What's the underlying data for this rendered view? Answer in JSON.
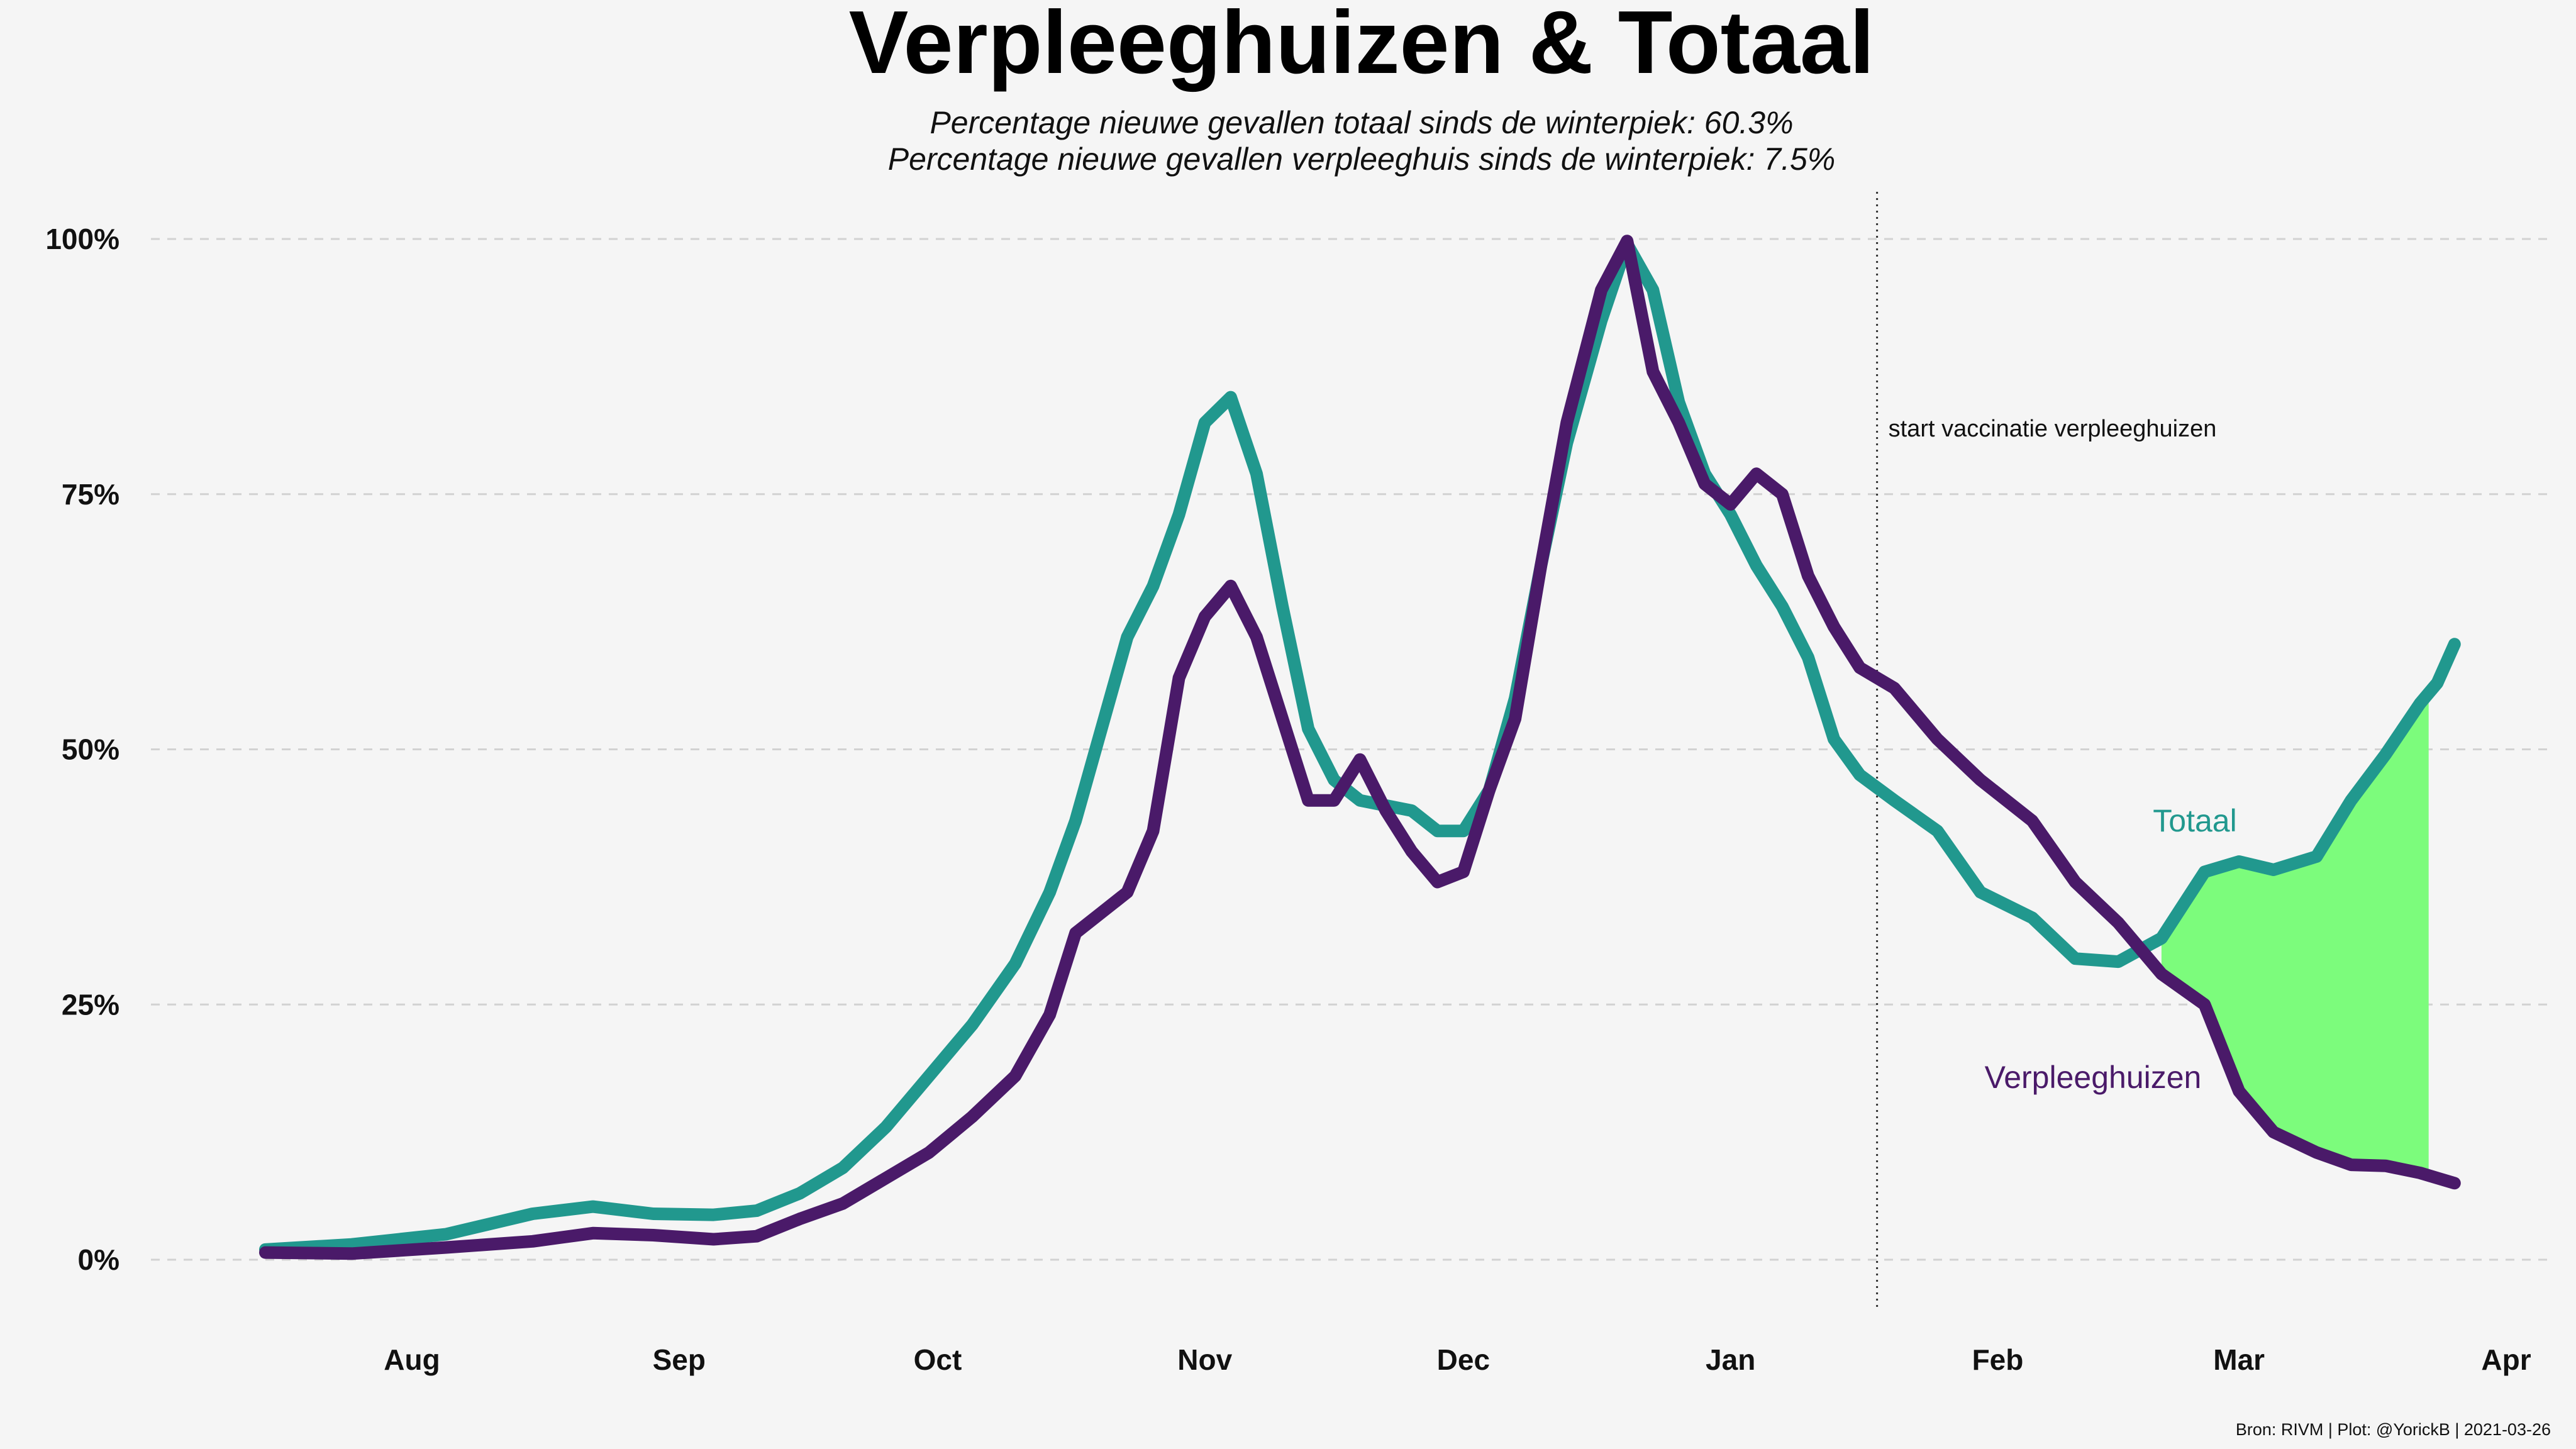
{
  "chart_data": {
    "type": "line",
    "title": "Verpleeghuizen & Totaal",
    "subtitles": [
      "Percentage nieuwe gevallen totaal sinds de winterpiek: 60.3%",
      "Percentage nieuwe gevallen verpleeghuis sinds de winterpiek: 7.5%"
    ],
    "xlabel": "",
    "ylabel": "",
    "x_domain": [
      "2020-07-01",
      "2021-04-01"
    ],
    "xticks": [
      {
        "date": "2020-08-01",
        "label": "Aug"
      },
      {
        "date": "2020-09-01",
        "label": "Sep"
      },
      {
        "date": "2020-10-01",
        "label": "Oct"
      },
      {
        "date": "2020-11-01",
        "label": "Nov"
      },
      {
        "date": "2020-12-01",
        "label": "Dec"
      },
      {
        "date": "2021-01-01",
        "label": "Jan"
      },
      {
        "date": "2021-02-01",
        "label": "Feb"
      },
      {
        "date": "2021-03-01",
        "label": "Mar"
      },
      {
        "date": "2021-04-01",
        "label": "Apr"
      }
    ],
    "ylim": [
      -5,
      101
    ],
    "yticks": [
      {
        "value": 0,
        "label": "0%"
      },
      {
        "value": 25,
        "label": "25%"
      },
      {
        "value": 50,
        "label": "50%"
      },
      {
        "value": 75,
        "label": "75%"
      },
      {
        "value": 100,
        "label": "100%"
      }
    ],
    "grid": "horizontal dashed",
    "annotation": {
      "date": "2021-01-18",
      "text": "start vaccinatie verpleeghuizen"
    },
    "series": [
      {
        "name": "Totaal",
        "color": "#21988e",
        "points": [
          [
            "2020-07-15",
            1
          ],
          [
            "2020-07-25",
            1.5
          ],
          [
            "2020-08-05",
            2.5
          ],
          [
            "2020-08-15",
            4.5
          ],
          [
            "2020-08-22",
            5.2
          ],
          [
            "2020-08-29",
            4.5
          ],
          [
            "2020-09-05",
            4.4
          ],
          [
            "2020-09-10",
            4.8
          ],
          [
            "2020-09-15",
            6.5
          ],
          [
            "2020-09-20",
            9
          ],
          [
            "2020-09-25",
            13
          ],
          [
            "2020-09-30",
            18
          ],
          [
            "2020-10-05",
            23
          ],
          [
            "2020-10-10",
            29
          ],
          [
            "2020-10-14",
            36
          ],
          [
            "2020-10-17",
            43
          ],
          [
            "2020-10-20",
            52
          ],
          [
            "2020-10-23",
            61
          ],
          [
            "2020-10-26",
            66
          ],
          [
            "2020-10-29",
            73
          ],
          [
            "2020-11-01",
            82
          ],
          [
            "2020-11-04",
            84.5
          ],
          [
            "2020-11-07",
            77
          ],
          [
            "2020-11-10",
            64
          ],
          [
            "2020-11-13",
            52
          ],
          [
            "2020-11-16",
            47
          ],
          [
            "2020-11-19",
            45
          ],
          [
            "2020-11-22",
            44.5
          ],
          [
            "2020-11-25",
            44
          ],
          [
            "2020-11-28",
            42
          ],
          [
            "2020-12-01",
            42
          ],
          [
            "2020-12-04",
            46
          ],
          [
            "2020-12-07",
            55
          ],
          [
            "2020-12-10",
            68
          ],
          [
            "2020-12-13",
            80
          ],
          [
            "2020-12-17",
            92
          ],
          [
            "2020-12-20",
            99.5
          ],
          [
            "2020-12-23",
            95
          ],
          [
            "2020-12-26",
            84
          ],
          [
            "2020-12-29",
            77
          ],
          [
            "2021-01-01",
            73
          ],
          [
            "2021-01-04",
            68
          ],
          [
            "2021-01-07",
            64
          ],
          [
            "2021-01-10",
            59
          ],
          [
            "2021-01-13",
            51
          ],
          [
            "2021-01-16",
            47.5
          ],
          [
            "2021-01-20",
            45
          ],
          [
            "2021-01-25",
            42
          ],
          [
            "2021-01-30",
            36
          ],
          [
            "2021-02-05",
            33.5
          ],
          [
            "2021-02-10",
            29.5
          ],
          [
            "2021-02-15",
            29.2
          ],
          [
            "2021-02-20",
            31.5
          ],
          [
            "2021-02-25",
            38
          ],
          [
            "2021-03-01",
            39
          ],
          [
            "2021-03-05",
            38.2
          ],
          [
            "2021-03-10",
            39.5
          ],
          [
            "2021-03-14",
            45
          ],
          [
            "2021-03-18",
            49.5
          ],
          [
            "2021-03-22",
            54.5
          ],
          [
            "2021-03-24",
            56.5
          ],
          [
            "2021-03-26",
            60.3
          ]
        ]
      },
      {
        "name": "Verpleeghuizen",
        "color": "#4a1a69",
        "points": [
          [
            "2020-07-15",
            0.7
          ],
          [
            "2020-07-25",
            0.6
          ],
          [
            "2020-08-05",
            1.2
          ],
          [
            "2020-08-15",
            1.8
          ],
          [
            "2020-08-22",
            2.6
          ],
          [
            "2020-08-29",
            2.4
          ],
          [
            "2020-09-05",
            2
          ],
          [
            "2020-09-10",
            2.3
          ],
          [
            "2020-09-15",
            4
          ],
          [
            "2020-09-20",
            5.5
          ],
          [
            "2020-09-25",
            8
          ],
          [
            "2020-09-30",
            10.5
          ],
          [
            "2020-10-05",
            14
          ],
          [
            "2020-10-10",
            18
          ],
          [
            "2020-10-14",
            24
          ],
          [
            "2020-10-17",
            32
          ],
          [
            "2020-10-20",
            34
          ],
          [
            "2020-10-23",
            36
          ],
          [
            "2020-10-26",
            42
          ],
          [
            "2020-10-29",
            57
          ],
          [
            "2020-11-01",
            63
          ],
          [
            "2020-11-04",
            66
          ],
          [
            "2020-11-07",
            61
          ],
          [
            "2020-11-10",
            53
          ],
          [
            "2020-11-13",
            45
          ],
          [
            "2020-11-16",
            45
          ],
          [
            "2020-11-19",
            49
          ],
          [
            "2020-11-22",
            44
          ],
          [
            "2020-11-25",
            40
          ],
          [
            "2020-11-28",
            37
          ],
          [
            "2020-12-01",
            38
          ],
          [
            "2020-12-04",
            46
          ],
          [
            "2020-12-07",
            53
          ],
          [
            "2020-12-10",
            68
          ],
          [
            "2020-12-13",
            82
          ],
          [
            "2020-12-17",
            95
          ],
          [
            "2020-12-20",
            99.8
          ],
          [
            "2020-12-23",
            87
          ],
          [
            "2020-12-26",
            82
          ],
          [
            "2020-12-29",
            76
          ],
          [
            "2021-01-01",
            74
          ],
          [
            "2021-01-04",
            77
          ],
          [
            "2021-01-07",
            75
          ],
          [
            "2021-01-10",
            67
          ],
          [
            "2021-01-13",
            62
          ],
          [
            "2021-01-16",
            58
          ],
          [
            "2021-01-20",
            56
          ],
          [
            "2021-01-25",
            51
          ],
          [
            "2021-01-30",
            47
          ],
          [
            "2021-02-05",
            43
          ],
          [
            "2021-02-10",
            37
          ],
          [
            "2021-02-15",
            33
          ],
          [
            "2021-02-20",
            28
          ],
          [
            "2021-02-25",
            25
          ],
          [
            "2021-03-01",
            16.5
          ],
          [
            "2021-03-05",
            12.5
          ],
          [
            "2021-03-10",
            10.5
          ],
          [
            "2021-03-14",
            9.3
          ],
          [
            "2021-03-18",
            9.2
          ],
          [
            "2021-03-22",
            8.5
          ],
          [
            "2021-03-24",
            8
          ],
          [
            "2021-03-26",
            7.5
          ]
        ]
      }
    ],
    "series_labels": {
      "Totaal": "Totaal",
      "Verpleeghuizen": "Verpleeghuizen"
    },
    "shaded_gap": {
      "from": "2021-02-20",
      "to": "2021-03-23",
      "color": "#7cfc7c"
    },
    "caption": "Bron: RIVM | Plot: @YorickB  |  2021-03-26"
  }
}
